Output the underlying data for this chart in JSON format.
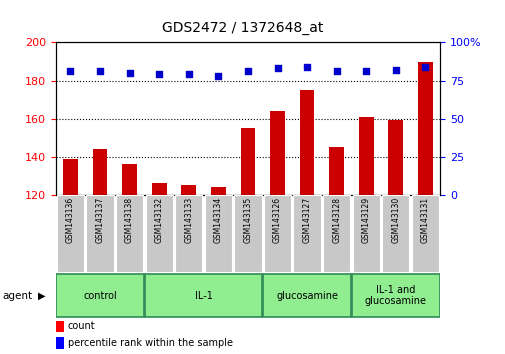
{
  "title": "GDS2472 / 1372648_at",
  "samples": [
    "GSM143136",
    "GSM143137",
    "GSM143138",
    "GSM143132",
    "GSM143133",
    "GSM143134",
    "GSM143135",
    "GSM143126",
    "GSM143127",
    "GSM143128",
    "GSM143129",
    "GSM143130",
    "GSM143131"
  ],
  "counts": [
    139,
    144,
    136,
    126,
    125,
    124,
    155,
    164,
    175,
    145,
    161,
    159,
    190
  ],
  "percentiles": [
    81,
    81,
    80,
    79,
    79,
    78,
    81,
    83,
    84,
    81,
    81,
    82,
    84
  ],
  "ylim_left": [
    120,
    200
  ],
  "ylim_right": [
    0,
    100
  ],
  "yticks_left": [
    120,
    140,
    160,
    180,
    200
  ],
  "yticks_right": [
    0,
    25,
    50,
    75,
    100
  ],
  "groups": [
    {
      "label": "control",
      "indices": [
        0,
        1,
        2
      ],
      "color": "#90EE90"
    },
    {
      "label": "IL-1",
      "indices": [
        3,
        4,
        5,
        6
      ],
      "color": "#90EE90"
    },
    {
      "label": "glucosamine",
      "indices": [
        7,
        8,
        9
      ],
      "color": "#90EE90"
    },
    {
      "label": "IL-1 and\nglucosamine",
      "indices": [
        10,
        11,
        12
      ],
      "color": "#90EE90"
    }
  ],
  "bar_color": "#CC0000",
  "dot_color": "#0000CC",
  "tick_label_bg": "#C8C8C8",
  "group_border_color": "#2E8B57",
  "agent_label": "agent",
  "legend_count_label": "count",
  "legend_pct_label": "percentile rank within the sample"
}
